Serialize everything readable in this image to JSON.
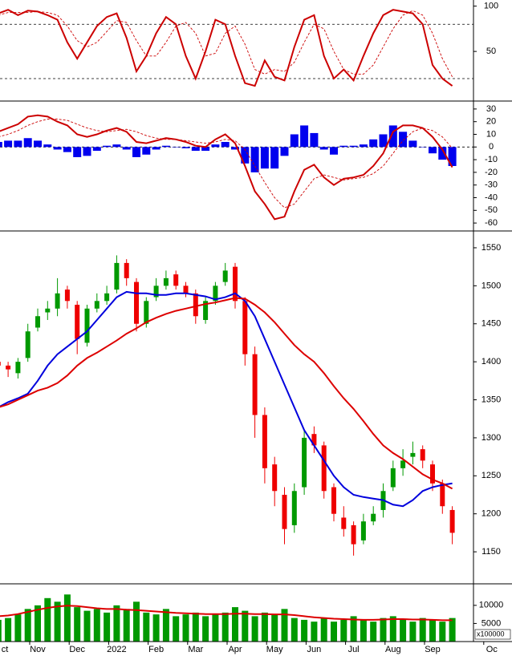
{
  "chart_data": [
    {
      "type": "line",
      "ylim": [
        -3,
        105
      ],
      "yticks": [
        50,
        100
      ],
      "hlines": [
        20,
        80
      ],
      "series": [
        {
          "color": "#cc0000",
          "values": [
            92,
            96,
            90,
            95,
            94,
            90,
            85,
            60,
            42,
            60,
            78,
            88,
            92,
            65,
            28,
            45,
            70,
            88,
            80,
            45,
            20,
            50,
            85,
            80,
            45,
            15,
            12,
            40,
            22,
            18,
            55,
            85,
            90,
            45,
            20,
            30,
            18,
            45,
            70,
            90,
            96,
            94,
            92,
            80,
            35,
            20,
            12,
            null,
            null,
            null,
            null
          ]
        },
        {
          "color": "#cc0000",
          "dash": true,
          "values": [
            90,
            93,
            93,
            93,
            94,
            93,
            90,
            78,
            62,
            55,
            60,
            72,
            84,
            82,
            62,
            45,
            45,
            60,
            78,
            82,
            70,
            45,
            48,
            70,
            78,
            58,
            30,
            25,
            30,
            28,
            38,
            60,
            80,
            75,
            50,
            30,
            25,
            25,
            35,
            55,
            75,
            90,
            95,
            90,
            70,
            42,
            22,
            null,
            null,
            null,
            null
          ]
        }
      ]
    },
    {
      "type": "combo",
      "ylim": [
        -65,
        35
      ],
      "yticks": [
        30,
        20,
        10,
        0,
        -10,
        -20,
        -30,
        -40,
        -50,
        -60
      ],
      "hlines": [
        0
      ],
      "bars": {
        "color": "#0000ee",
        "values": [
          4,
          5,
          5,
          7,
          5,
          2,
          -2,
          -4,
          -8,
          -7,
          -3,
          1,
          2,
          -2,
          -8,
          -6,
          -2,
          1,
          0,
          -1,
          -3,
          -3,
          2,
          4,
          -2,
          -13,
          -20,
          -17,
          -17,
          -7,
          10,
          17,
          11,
          -2,
          -6,
          1,
          1,
          2,
          6,
          10,
          17,
          12,
          5,
          0,
          -5,
          -10,
          -15,
          null,
          null,
          null,
          null
        ]
      },
      "series": [
        {
          "color": "#cc0000",
          "values": [
            12,
            15,
            18,
            24,
            25,
            24,
            20,
            17,
            10,
            8,
            10,
            13,
            15,
            12,
            4,
            3,
            5,
            7,
            6,
            4,
            1,
            0,
            6,
            10,
            3,
            -15,
            -35,
            -45,
            -57,
            -55,
            -35,
            -18,
            -14,
            -24,
            -30,
            -25,
            -24,
            -22,
            -15,
            -5,
            12,
            17,
            17,
            15,
            8,
            -2,
            -16,
            null,
            null,
            null,
            null
          ]
        },
        {
          "color": "#cc0000",
          "dash": true,
          "values": [
            8,
            10,
            13,
            17,
            20,
            22,
            22,
            21,
            18,
            15,
            13,
            12,
            13,
            14,
            12,
            9,
            7,
            6,
            6,
            5,
            4,
            3,
            4,
            6,
            5,
            -2,
            -15,
            -28,
            -40,
            -48,
            -45,
            -35,
            -25,
            -22,
            -24,
            -26,
            -25,
            -24,
            -21,
            -15,
            -5,
            5,
            12,
            15,
            13,
            8,
            -1,
            null,
            null,
            null,
            null
          ]
        }
      ]
    },
    {
      "type": "candlestick",
      "ylim": [
        1110,
        1570
      ],
      "yticks": [
        1150,
        1200,
        1250,
        1300,
        1350,
        1400,
        1450,
        1500,
        1550
      ],
      "up_color": "#009900",
      "down_color": "#ee0000",
      "open": [
        1400,
        1395,
        1385,
        1405,
        1445,
        1465,
        1470,
        1495,
        1475,
        1425,
        1470,
        1480,
        1495,
        1530,
        1505,
        1450,
        1485,
        1500,
        1515,
        1500,
        1490,
        1455,
        1480,
        1505,
        1525,
        1480,
        1410,
        1330,
        1265,
        1225,
        1185,
        1235,
        1305,
        1290,
        1235,
        1195,
        1185,
        1165,
        1190,
        1205,
        1235,
        1260,
        1275,
        1285,
        1265,
        1240,
        1205,
        null,
        null,
        null,
        null
      ],
      "high": [
        1405,
        1400,
        1405,
        1450,
        1470,
        1480,
        1510,
        1500,
        1480,
        1475,
        1490,
        1500,
        1540,
        1535,
        1510,
        1485,
        1510,
        1520,
        1520,
        1505,
        1495,
        1485,
        1505,
        1530,
        1530,
        1485,
        1420,
        1340,
        1275,
        1235,
        1240,
        1310,
        1315,
        1295,
        1240,
        1210,
        1190,
        1200,
        1210,
        1240,
        1270,
        1285,
        1295,
        1290,
        1270,
        1245,
        1210,
        null,
        null,
        null,
        null
      ],
      "low": [
        1385,
        1380,
        1378,
        1400,
        1440,
        1455,
        1460,
        1470,
        1410,
        1420,
        1465,
        1475,
        1490,
        1500,
        1440,
        1445,
        1480,
        1495,
        1495,
        1485,
        1450,
        1450,
        1475,
        1500,
        1470,
        1395,
        1300,
        1240,
        1210,
        1160,
        1175,
        1225,
        1280,
        1220,
        1190,
        1170,
        1145,
        1160,
        1185,
        1195,
        1230,
        1250,
        1265,
        1260,
        1230,
        1200,
        1160,
        null,
        null,
        null,
        null
      ],
      "close": [
        1395,
        1390,
        1400,
        1440,
        1460,
        1470,
        1490,
        1480,
        1430,
        1470,
        1480,
        1490,
        1530,
        1510,
        1450,
        1480,
        1500,
        1510,
        1500,
        1490,
        1460,
        1480,
        1500,
        1520,
        1480,
        1410,
        1330,
        1260,
        1230,
        1180,
        1230,
        1300,
        1290,
        1230,
        1200,
        1180,
        1160,
        1190,
        1200,
        1230,
        1260,
        1270,
        1280,
        1270,
        1240,
        1210,
        1175,
        null,
        null,
        null,
        null
      ],
      "series": [
        {
          "color": "#0000dd",
          "values": [
            1340,
            1347,
            1352,
            1358,
            1375,
            1395,
            1410,
            1420,
            1430,
            1440,
            1455,
            1470,
            1485,
            1492,
            1490,
            1490,
            1488,
            1488,
            1490,
            1490,
            1488,
            1486,
            1482,
            1485,
            1490,
            1480,
            1460,
            1430,
            1400,
            1370,
            1340,
            1310,
            1290,
            1270,
            1250,
            1235,
            1225,
            1222,
            1220,
            1218,
            1212,
            1210,
            1218,
            1230,
            1235,
            1238,
            1240,
            null,
            null,
            null,
            null
          ]
        },
        {
          "color": "#dd0000",
          "values": [
            1340,
            1344,
            1350,
            1356,
            1362,
            1366,
            1372,
            1382,
            1395,
            1405,
            1412,
            1420,
            1428,
            1437,
            1444,
            1452,
            1458,
            1463,
            1467,
            1470,
            1473,
            1476,
            1478,
            1481,
            1484,
            1483,
            1475,
            1465,
            1452,
            1437,
            1422,
            1410,
            1400,
            1385,
            1368,
            1352,
            1338,
            1322,
            1305,
            1290,
            1280,
            1272,
            1262,
            1252,
            1245,
            1240,
            1233,
            null,
            null,
            null,
            null
          ]
        }
      ]
    },
    {
      "type": "bar",
      "ylim": [
        0,
        15500
      ],
      "yticks": [
        5000,
        10000
      ],
      "unit_label": "x100000",
      "color": "#009900",
      "categories": [
        "ct",
        null,
        null,
        null,
        "Nov",
        null,
        null,
        null,
        "Dec",
        null,
        null,
        null,
        "2022",
        null,
        null,
        null,
        "Feb",
        null,
        null,
        null,
        "Mar",
        null,
        null,
        null,
        "Apr",
        null,
        null,
        null,
        "May",
        null,
        null,
        null,
        "Jun",
        null,
        null,
        null,
        "Jul",
        null,
        null,
        null,
        "Aug",
        null,
        null,
        null,
        "Sep",
        null,
        null,
        null,
        null,
        null,
        "Oc"
      ],
      "values": [
        6000,
        6500,
        7500,
        9000,
        10000,
        12000,
        11000,
        13000,
        9500,
        8500,
        9000,
        8000,
        10000,
        9000,
        11000,
        8000,
        7500,
        9000,
        7000,
        7500,
        8000,
        7000,
        7500,
        8000,
        9500,
        8500,
        7000,
        8000,
        7500,
        9000,
        6500,
        6000,
        5500,
        6500,
        5500,
        6000,
        7000,
        6000,
        5500,
        6500,
        7000,
        6000,
        5500,
        6500,
        6000,
        5500,
        6500,
        null,
        null,
        null,
        null
      ],
      "series": [
        {
          "color": "#dd0000",
          "values": [
            7000,
            7200,
            7600,
            8200,
            8800,
            9300,
            9700,
            9900,
            9800,
            9500,
            9200,
            9000,
            9000,
            8800,
            8700,
            8500,
            8300,
            8100,
            7900,
            7800,
            7700,
            7600,
            7600,
            7600,
            7700,
            7700,
            7600,
            7600,
            7500,
            7500,
            7300,
            7000,
            6700,
            6500,
            6300,
            6200,
            6100,
            6000,
            6000,
            6100,
            6200,
            6200,
            6100,
            6100,
            6000,
            5900,
            5900,
            null,
            null,
            null,
            null
          ]
        }
      ]
    }
  ]
}
